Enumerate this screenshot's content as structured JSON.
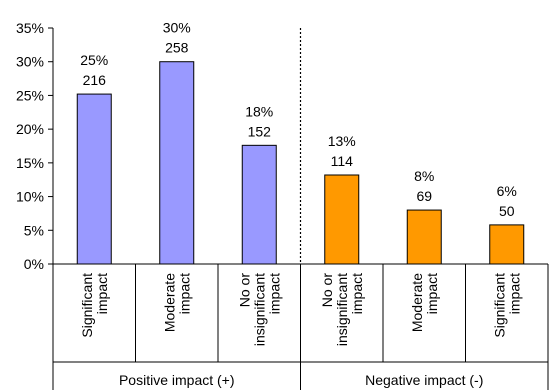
{
  "chart_data": {
    "type": "bar",
    "title": "",
    "xlabel": "",
    "ylabel": "",
    "ylim": [
      0,
      35
    ],
    "yticks": [
      "0%",
      "5%",
      "10%",
      "15%",
      "20%",
      "25%",
      "30%",
      "35%"
    ],
    "ytick_values": [
      0,
      5,
      10,
      15,
      20,
      25,
      30,
      35
    ],
    "grid": false,
    "legend": "none",
    "categories": [
      [
        "Significant",
        "impact"
      ],
      [
        "Moderate",
        "impact"
      ],
      [
        "No or",
        "insignificant",
        "impact"
      ],
      [
        "No or",
        "insignificant",
        "impact"
      ],
      [
        "Moderate",
        "impact"
      ],
      [
        "Significant",
        "impact"
      ]
    ],
    "values": [
      25,
      30,
      18,
      13,
      8,
      6
    ],
    "bar_values_exact": [
      25.2,
      30.0,
      17.6,
      13.2,
      8.0,
      5.8
    ],
    "percent_labels": [
      "25%",
      "30%",
      "18%",
      "13%",
      "8%",
      "6%"
    ],
    "counts": [
      "216",
      "258",
      "152",
      "114",
      "69",
      "50"
    ],
    "groups": [
      {
        "label": "Positive impact (+)",
        "color": "#9999ff",
        "indices": [
          0,
          1,
          2
        ]
      },
      {
        "label": "Negative impact (-)",
        "color": "#ff9900",
        "indices": [
          3,
          4,
          5
        ]
      }
    ]
  }
}
